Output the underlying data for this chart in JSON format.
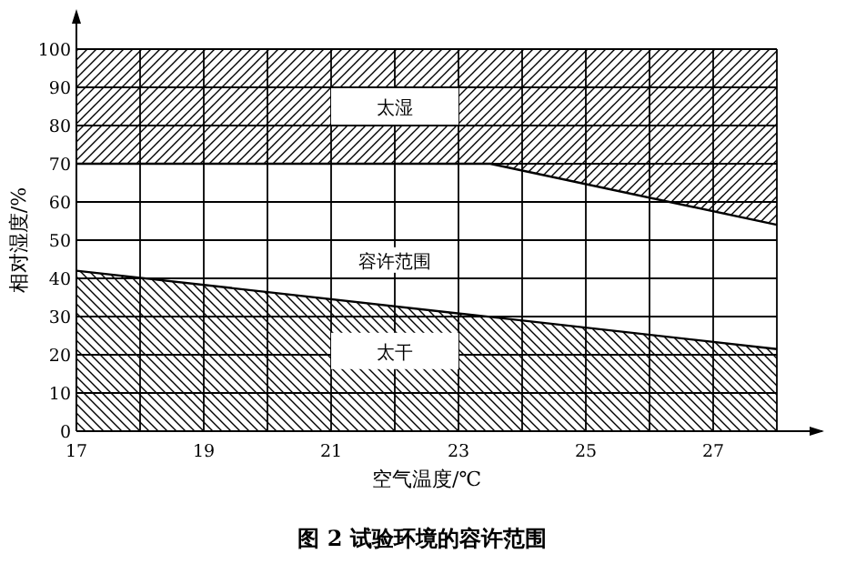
{
  "chart_data": {
    "type": "area",
    "stacked": true,
    "title": "图 2  试验环境的容许范围",
    "xlabel": "空气温度/℃",
    "ylabel": "相对湿度/%",
    "x": [
      17,
      23.5,
      28
    ],
    "series": [
      {
        "name": "太干",
        "color": "#000000",
        "values": [
          42,
          29.9,
          21.5
        ]
      },
      {
        "name": "容许范围",
        "color": "#ffffff",
        "values": [
          28,
          40.1,
          32.5
        ]
      },
      {
        "name": "太湿",
        "color": "#000000",
        "values": [
          30,
          30,
          46
        ]
      }
    ],
    "xlim": [
      17,
      28
    ],
    "ylim": [
      0,
      100
    ],
    "xticks": [
      17,
      {
        "value": 18,
        "label": null
      },
      19,
      {
        "value": 20,
        "label": null
      },
      21,
      {
        "value": 22,
        "label": null
      },
      23,
      {
        "value": 24,
        "label": null
      },
      25,
      {
        "value": 26,
        "label": null
      },
      27,
      {
        "value": 28,
        "label": null
      }
    ],
    "yticks": [
      0,
      10,
      20,
      30,
      40,
      50,
      60,
      70,
      80,
      90,
      100
    ],
    "grid": true
  }
}
